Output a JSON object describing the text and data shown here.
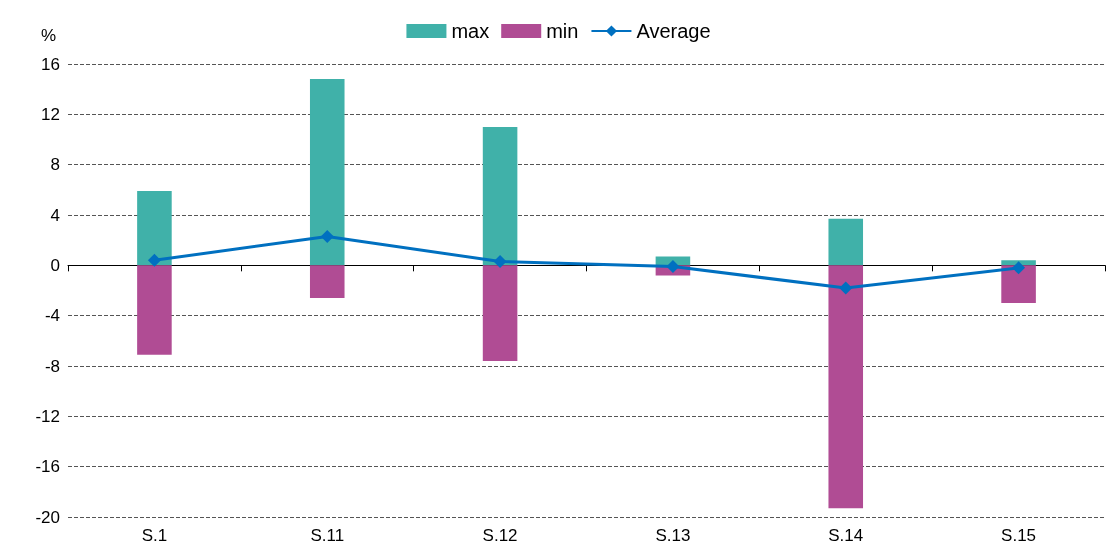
{
  "chart_data": {
    "type": "bar",
    "ylabel": "%",
    "categories": [
      "S.1",
      "S.11",
      "S.12",
      "S.13",
      "S.14",
      "S.15"
    ],
    "series": [
      {
        "name": "max",
        "color": "#40b1a9",
        "values": [
          5.9,
          14.8,
          11.0,
          0.7,
          3.7,
          0.4
        ]
      },
      {
        "name": "min",
        "color": "#b04c94",
        "values": [
          -7.1,
          -2.6,
          -7.6,
          -0.8,
          -19.3,
          -3.0
        ]
      },
      {
        "name": "Average",
        "type": "line",
        "color": "#0070c0",
        "marker": "diamond",
        "values": [
          0.4,
          2.3,
          0.3,
          -0.1,
          -1.8,
          -0.2
        ]
      }
    ],
    "stacked": true,
    "ylim": [
      -20,
      16
    ],
    "yticks": [
      -20,
      -16,
      -12,
      -8,
      -4,
      0,
      4,
      8,
      12,
      16
    ],
    "grid": "y",
    "legend": "top"
  }
}
